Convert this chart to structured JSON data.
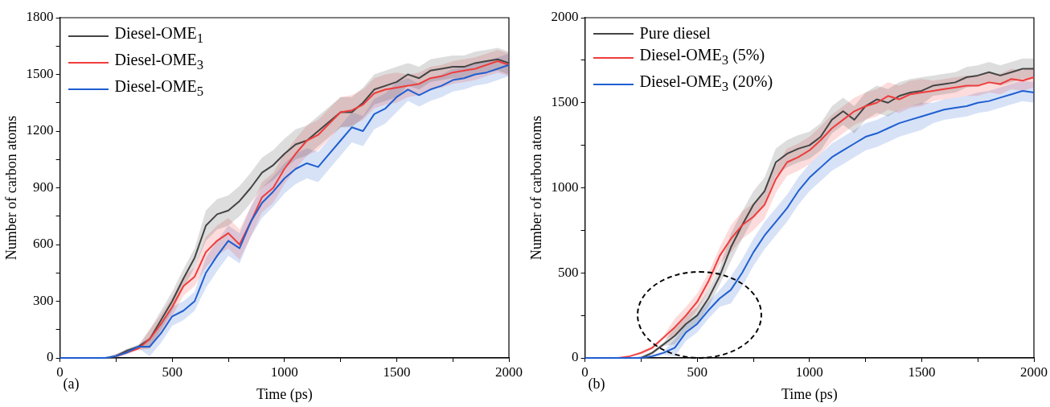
{
  "chart_data": [
    {
      "type": "line",
      "xlabel": "Time (ps)",
      "ylabel": "Number of carbon atoms",
      "annotations": [
        "(a)"
      ],
      "legend": "top left",
      "x": [
        0,
        50,
        100,
        150,
        200,
        250,
        300,
        350,
        400,
        450,
        500,
        550,
        600,
        650,
        700,
        750,
        800,
        850,
        900,
        950,
        1000,
        1050,
        1100,
        1150,
        1200,
        1250,
        1300,
        1350,
        1400,
        1450,
        1500,
        1550,
        1600,
        1650,
        1700,
        1750,
        1800,
        1850,
        1900,
        1950,
        2000
      ],
      "xlim": [
        0,
        2000
      ],
      "xticks": [
        0,
        {
          "value": 250,
          "label": null
        },
        500,
        {
          "value": 750,
          "label": null
        },
        1000,
        {
          "value": 1250,
          "label": null
        },
        1500,
        {
          "value": 1750,
          "label": null
        },
        2000
      ],
      "ylim": [
        0,
        1800
      ],
      "yticks": [
        0,
        {
          "value": 150,
          "label": null
        },
        300,
        {
          "value": 450,
          "label": null
        },
        600,
        {
          "value": 750,
          "label": null
        },
        900,
        {
          "value": 1050,
          "label": null
        },
        1200,
        {
          "value": 1350,
          "label": null
        },
        1500,
        {
          "value": 1650,
          "label": null
        },
        1800
      ],
      "series": [
        {
          "name": "Diesel-OME$_{1}$",
          "color": "#444444",
          "values": [
            null,
            null,
            null,
            null,
            null,
            10,
            40,
            60,
            100,
            200,
            300,
            420,
            530,
            700,
            760,
            780,
            830,
            900,
            980,
            1020,
            1080,
            1130,
            1150,
            1200,
            1250,
            1300,
            1300,
            1350,
            1420,
            1440,
            1460,
            1500,
            1480,
            1520,
            1530,
            1540,
            1540,
            1560,
            1570,
            1580,
            1560
          ],
          "lower": [
            0,
            0,
            0,
            0,
            0,
            0,
            30,
            50,
            50,
            150,
            250,
            370,
            480,
            620,
            680,
            700,
            750,
            820,
            900,
            940,
            1000,
            1050,
            1070,
            1120,
            1170,
            1220,
            1220,
            1270,
            1340,
            1360,
            1380,
            1440,
            1420,
            1460,
            1470,
            1480,
            1480,
            1500,
            1510,
            1520,
            1500
          ],
          "upper": [
            0,
            0,
            0,
            0,
            0,
            20,
            50,
            70,
            150,
            250,
            350,
            470,
            580,
            780,
            840,
            860,
            910,
            980,
            1060,
            1100,
            1160,
            1210,
            1230,
            1280,
            1330,
            1380,
            1380,
            1430,
            1500,
            1520,
            1540,
            1560,
            1540,
            1580,
            1590,
            1600,
            1600,
            1620,
            1630,
            1640,
            1620
          ]
        },
        {
          "name": "Diesel-OME$_{3}$",
          "color": "#f03c3c",
          "values": [
            null,
            null,
            null,
            null,
            null,
            10,
            30,
            50,
            100,
            180,
            270,
            380,
            430,
            560,
            620,
            660,
            600,
            720,
            850,
            900,
            1000,
            1080,
            1150,
            1180,
            1240,
            1300,
            1310,
            1340,
            1400,
            1420,
            1430,
            1440,
            1450,
            1480,
            1490,
            1510,
            1520,
            1530,
            1550,
            1570,
            1550
          ],
          "lower": [
            0,
            0,
            0,
            0,
            0,
            0,
            20,
            40,
            50,
            130,
            220,
            330,
            380,
            480,
            540,
            580,
            520,
            640,
            770,
            820,
            920,
            1000,
            1070,
            1100,
            1160,
            1220,
            1230,
            1260,
            1320,
            1340,
            1350,
            1380,
            1390,
            1420,
            1430,
            1450,
            1460,
            1470,
            1490,
            1510,
            1490
          ],
          "upper": [
            0,
            0,
            0,
            0,
            0,
            20,
            40,
            60,
            150,
            230,
            320,
            430,
            480,
            640,
            700,
            740,
            680,
            800,
            930,
            980,
            1080,
            1160,
            1230,
            1260,
            1320,
            1380,
            1390,
            1420,
            1480,
            1500,
            1510,
            1500,
            1510,
            1540,
            1550,
            1570,
            1580,
            1590,
            1610,
            1630,
            1610
          ]
        },
        {
          "name": "Diesel-OME$_{5}$",
          "color": "#1f5fd0",
          "values": [
            0,
            0,
            0,
            0,
            0,
            10,
            30,
            60,
            60,
            130,
            220,
            250,
            300,
            450,
            540,
            620,
            580,
            720,
            820,
            880,
            950,
            1000,
            1030,
            1010,
            1080,
            1150,
            1220,
            1200,
            1290,
            1320,
            1380,
            1420,
            1390,
            1420,
            1440,
            1470,
            1480,
            1500,
            1510,
            1530,
            1550
          ],
          "lower": [
            0,
            0,
            0,
            0,
            0,
            0,
            20,
            50,
            10,
            80,
            170,
            200,
            250,
            370,
            460,
            540,
            500,
            640,
            740,
            800,
            870,
            920,
            950,
            930,
            1000,
            1070,
            1140,
            1120,
            1210,
            1240,
            1300,
            1360,
            1330,
            1360,
            1380,
            1410,
            1420,
            1440,
            1450,
            1470,
            1490
          ],
          "upper": [
            0,
            0,
            0,
            0,
            0,
            20,
            40,
            70,
            110,
            180,
            270,
            300,
            350,
            530,
            620,
            700,
            660,
            800,
            900,
            960,
            1030,
            1080,
            1110,
            1090,
            1160,
            1230,
            1300,
            1280,
            1370,
            1400,
            1460,
            1480,
            1450,
            1480,
            1500,
            1530,
            1540,
            1560,
            1570,
            1590,
            1610
          ]
        }
      ]
    },
    {
      "type": "line",
      "xlabel": "Time (ps)",
      "ylabel": "Number of carbon atoms",
      "annotations": [
        "(b)"
      ],
      "legend": "top left",
      "x": [
        0,
        50,
        100,
        150,
        200,
        250,
        300,
        350,
        400,
        450,
        500,
        550,
        600,
        650,
        700,
        750,
        800,
        850,
        900,
        950,
        1000,
        1050,
        1100,
        1150,
        1200,
        1250,
        1300,
        1350,
        1400,
        1450,
        1500,
        1550,
        1600,
        1650,
        1700,
        1750,
        1800,
        1850,
        1900,
        1950,
        2000
      ],
      "xlim": [
        0,
        2000
      ],
      "xticks": [
        0,
        {
          "value": 250,
          "label": null
        },
        500,
        {
          "value": 750,
          "label": null
        },
        1000,
        {
          "value": 1250,
          "label": null
        },
        1500,
        {
          "value": 1750,
          "label": null
        },
        2000
      ],
      "ylim": [
        0,
        2000
      ],
      "yticks": [
        0,
        {
          "value": 250,
          "label": null
        },
        500,
        {
          "value": 750,
          "label": null
        },
        1000,
        {
          "value": 1250,
          "label": null
        },
        1500,
        {
          "value": 1750,
          "label": null
        },
        2000
      ],
      "series": [
        {
          "name": "Pure diesel",
          "color": "#444444",
          "values": [
            null,
            null,
            null,
            null,
            null,
            0,
            30,
            80,
            130,
            200,
            250,
            350,
            480,
            650,
            780,
            900,
            980,
            1150,
            1200,
            1230,
            1250,
            1300,
            1400,
            1450,
            1400,
            1480,
            1520,
            1500,
            1540,
            1560,
            1570,
            1600,
            1610,
            1620,
            1650,
            1660,
            1680,
            1660,
            1680,
            1700,
            1700
          ],
          "lower": [
            0,
            0,
            0,
            0,
            0,
            0,
            20,
            70,
            80,
            150,
            200,
            300,
            430,
            570,
            700,
            820,
            900,
            1070,
            1120,
            1150,
            1170,
            1220,
            1320,
            1370,
            1320,
            1400,
            1440,
            1420,
            1460,
            1480,
            1490,
            1540,
            1550,
            1560,
            1590,
            1600,
            1620,
            1600,
            1620,
            1640,
            1640
          ],
          "upper": [
            0,
            0,
            0,
            0,
            0,
            10,
            40,
            90,
            180,
            250,
            300,
            400,
            530,
            730,
            860,
            980,
            1060,
            1230,
            1280,
            1310,
            1330,
            1380,
            1480,
            1530,
            1480,
            1560,
            1600,
            1580,
            1620,
            1640,
            1650,
            1660,
            1670,
            1680,
            1710,
            1720,
            1740,
            1720,
            1740,
            1760,
            1760
          ]
        },
        {
          "name": "Diesel-OME$_{3}$ (5%)",
          "color": "#f03c3c",
          "values": [
            null,
            null,
            null,
            0,
            10,
            30,
            60,
            120,
            180,
            250,
            330,
            450,
            600,
            700,
            780,
            830,
            900,
            1050,
            1150,
            1180,
            1220,
            1280,
            1350,
            1400,
            1450,
            1480,
            1500,
            1540,
            1520,
            1550,
            1560,
            1570,
            1580,
            1590,
            1600,
            1600,
            1620,
            1610,
            1640,
            1630,
            1650
          ],
          "lower": [
            0,
            0,
            0,
            0,
            10,
            20,
            50,
            110,
            130,
            200,
            280,
            400,
            550,
            620,
            700,
            750,
            820,
            970,
            1070,
            1100,
            1140,
            1200,
            1270,
            1320,
            1370,
            1400,
            1420,
            1460,
            1440,
            1470,
            1480,
            1510,
            1520,
            1530,
            1540,
            1540,
            1560,
            1550,
            1580,
            1570,
            1590
          ],
          "upper": [
            0,
            0,
            0,
            0,
            10,
            40,
            70,
            130,
            230,
            300,
            380,
            500,
            650,
            780,
            860,
            910,
            980,
            1130,
            1230,
            1260,
            1300,
            1360,
            1430,
            1480,
            1530,
            1560,
            1580,
            1620,
            1600,
            1630,
            1640,
            1630,
            1640,
            1650,
            1660,
            1660,
            1680,
            1670,
            1700,
            1690,
            1710
          ]
        },
        {
          "name": "Diesel-OME$_{3}$ (20%)",
          "color": "#1f5fd0",
          "values": [
            0,
            0,
            0,
            0,
            0,
            0,
            10,
            30,
            60,
            150,
            200,
            280,
            350,
            400,
            500,
            620,
            720,
            800,
            880,
            980,
            1060,
            1120,
            1180,
            1220,
            1260,
            1300,
            1320,
            1350,
            1380,
            1400,
            1420,
            1440,
            1460,
            1470,
            1480,
            1500,
            1510,
            1530,
            1550,
            1570,
            1560
          ],
          "lower": [
            0,
            0,
            0,
            0,
            0,
            0,
            0,
            20,
            10,
            100,
            150,
            230,
            300,
            320,
            420,
            540,
            640,
            720,
            800,
            900,
            980,
            1040,
            1100,
            1140,
            1180,
            1220,
            1240,
            1270,
            1300,
            1320,
            1340,
            1380,
            1400,
            1410,
            1420,
            1440,
            1450,
            1470,
            1490,
            1510,
            1500
          ],
          "upper": [
            0,
            0,
            0,
            0,
            0,
            10,
            20,
            40,
            110,
            200,
            250,
            330,
            400,
            480,
            580,
            700,
            800,
            880,
            960,
            1060,
            1140,
            1200,
            1260,
            1300,
            1340,
            1380,
            1400,
            1430,
            1460,
            1480,
            1500,
            1500,
            1520,
            1530,
            1540,
            1560,
            1570,
            1590,
            1610,
            1630,
            1620
          ]
        }
      ]
    }
  ]
}
